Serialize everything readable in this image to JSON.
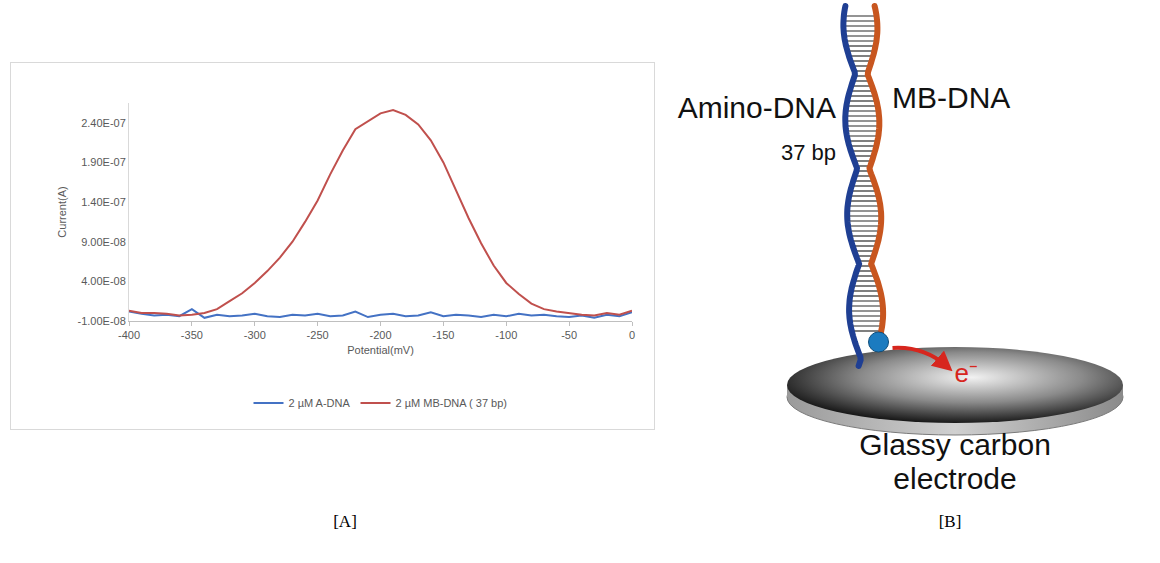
{
  "chart_data": {
    "type": "line",
    "x_label": "Potential(mV)",
    "y_label": "Current(A)",
    "x": [
      -400,
      -390,
      -380,
      -370,
      -360,
      -350,
      -340,
      -330,
      -320,
      -310,
      -300,
      -290,
      -280,
      -270,
      -260,
      -250,
      -240,
      -230,
      -220,
      -210,
      -200,
      -190,
      -180,
      -170,
      -160,
      -150,
      -140,
      -130,
      -120,
      -110,
      -100,
      -90,
      -80,
      -70,
      -60,
      -50,
      -40,
      -30,
      -20,
      -10,
      0
    ],
    "series": [
      {
        "name": "2 µM A-DNA",
        "color": "#4472c4",
        "values": [
          2e-09,
          -1e-09,
          -3e-09,
          -2e-09,
          -4e-09,
          5e-09,
          -6e-09,
          -2e-09,
          -4e-09,
          -3e-09,
          -1e-09,
          -4e-09,
          -5e-09,
          -2e-09,
          -3e-09,
          -1e-09,
          -4e-09,
          -3e-09,
          2e-09,
          -5e-09,
          -2e-09,
          -1e-09,
          -4e-09,
          -3e-09,
          1e-09,
          -4e-09,
          -2e-09,
          -3e-09,
          -5e-09,
          -2e-09,
          -4e-09,
          -1e-09,
          -3e-09,
          -2e-09,
          -4e-09,
          -5e-09,
          -3e-09,
          -6e-09,
          -2e-09,
          -4e-09,
          1e-09
        ]
      },
      {
        "name": "2 µM MB-DNA ( 37 bp)",
        "color": "#c0504d",
        "values": [
          3e-09,
          0,
          0,
          -1e-09,
          -3e-09,
          -2e-09,
          0,
          5e-09,
          1.5e-08,
          2.5e-08,
          3.8e-08,
          5.3e-08,
          7e-08,
          9e-08,
          1.15e-07,
          1.42e-07,
          1.75e-07,
          2.05e-07,
          2.32e-07,
          2.42e-07,
          2.52e-07,
          2.56e-07,
          2.5e-07,
          2.38e-07,
          2.18e-07,
          1.9e-07,
          1.55e-07,
          1.2e-07,
          8.8e-08,
          6e-08,
          3.8e-08,
          2.4e-08,
          1.2e-08,
          5e-09,
          2e-09,
          0,
          -2e-09,
          -3e-09,
          0,
          -2e-09,
          3e-09
        ]
      }
    ],
    "xlim": [
      -400,
      0
    ],
    "xticks": [
      -400,
      -350,
      -300,
      -250,
      -200,
      -150,
      -100,
      -50,
      0
    ],
    "ylim": [
      -1e-08,
      2.65e-07
    ],
    "yticks": [
      {
        "value": -1e-08,
        "label": "-1.00E-08"
      },
      {
        "value": 4e-08,
        "label": "4.00E-08"
      },
      {
        "value": 9e-08,
        "label": "9.00E-08"
      },
      {
        "value": 1.4e-07,
        "label": "1.40E-07"
      },
      {
        "value": 1.9e-07,
        "label": "1.90E-07"
      },
      {
        "value": 2.4e-07,
        "label": "2.40E-07"
      }
    ],
    "grid": false,
    "legend": "bottom"
  },
  "diagram": {
    "strands": [
      {
        "label": "Amino-DNA",
        "color": "#1f3f93"
      },
      {
        "label": "MB-DNA",
        "color": "#c8561f"
      }
    ],
    "duplex_label": "37 bp",
    "electron_label": "e⁻",
    "electrode_label": [
      "Glassy carbon",
      "electrode"
    ]
  },
  "panel_labels": [
    "[A]",
    "[B]"
  ]
}
